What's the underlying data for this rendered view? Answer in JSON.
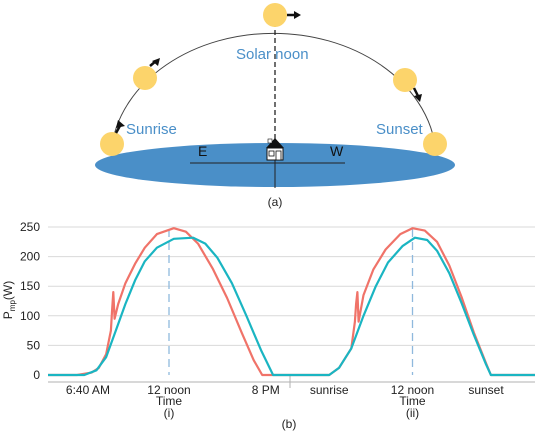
{
  "diagram": {
    "caption": "(a)",
    "labels": {
      "sunrise": "Sunrise",
      "solar_noon": "Solar noon",
      "sunset": "Sunset",
      "east": "E",
      "west": "W"
    },
    "colors": {
      "sun": "#fcd46b",
      "ground": "#4a8fc8",
      "text_blue": "#4a8fc8"
    }
  },
  "figure_b": {
    "caption": "(b)"
  },
  "chart_data": [
    {
      "type": "line",
      "panel_label": "(i)",
      "xlabel": "Time",
      "ylabel": "P_mp(W)",
      "ylim": [
        0,
        250
      ],
      "yticks": [
        0,
        50,
        100,
        150,
        200,
        250
      ],
      "grid": true,
      "x_tick_labels": [
        {
          "x": 0.165,
          "label": "6:40 AM"
        },
        {
          "x": 0.5,
          "label": "12 noon"
        },
        {
          "x": 0.9,
          "label": "8 PM"
        }
      ],
      "noon_marker_x": 0.5,
      "series": [
        {
          "color": "#f07369",
          "points": [
            [
              0,
              0
            ],
            [
              0.12,
              0
            ],
            [
              0.18,
              4
            ],
            [
              0.21,
              12
            ],
            [
              0.24,
              35
            ],
            [
              0.255,
              65
            ],
            [
              0.26,
              75
            ],
            [
              0.265,
              110
            ],
            [
              0.27,
              140
            ],
            [
              0.275,
              95
            ],
            [
              0.29,
              120
            ],
            [
              0.32,
              155
            ],
            [
              0.36,
              188
            ],
            [
              0.4,
              215
            ],
            [
              0.45,
              238
            ],
            [
              0.52,
              248
            ],
            [
              0.57,
              242
            ],
            [
              0.62,
              222
            ],
            [
              0.68,
              180
            ],
            [
              0.74,
              130
            ],
            [
              0.8,
              72
            ],
            [
              0.85,
              25
            ],
            [
              0.885,
              0
            ],
            [
              1,
              0
            ]
          ]
        },
        {
          "color": "#1ab5c2",
          "points": [
            [
              0,
              0
            ],
            [
              0.15,
              0
            ],
            [
              0.2,
              8
            ],
            [
              0.24,
              30
            ],
            [
              0.28,
              75
            ],
            [
              0.32,
              120
            ],
            [
              0.36,
              160
            ],
            [
              0.4,
              192
            ],
            [
              0.45,
              215
            ],
            [
              0.52,
              230
            ],
            [
              0.6,
              232
            ],
            [
              0.65,
              222
            ],
            [
              0.7,
              198
            ],
            [
              0.76,
              155
            ],
            [
              0.82,
              100
            ],
            [
              0.88,
              42
            ],
            [
              0.93,
              0
            ],
            [
              1,
              0
            ]
          ]
        }
      ]
    },
    {
      "type": "line",
      "panel_label": "(ii)",
      "xlabel": "Time",
      "ylim": [
        0,
        250
      ],
      "grid": true,
      "x_tick_labels": [
        {
          "x": 0.16,
          "label": "sunrise"
        },
        {
          "x": 0.5,
          "label": "12 noon"
        },
        {
          "x": 0.8,
          "label": "sunset"
        }
      ],
      "noon_marker_x": 0.5,
      "series": [
        {
          "color": "#f07369",
          "points": [
            [
              0,
              0
            ],
            [
              0.16,
              0
            ],
            [
              0.2,
              12
            ],
            [
              0.25,
              45
            ],
            [
              0.265,
              90
            ],
            [
              0.27,
              120
            ],
            [
              0.275,
              140
            ],
            [
              0.28,
              90
            ],
            [
              0.3,
              135
            ],
            [
              0.34,
              178
            ],
            [
              0.39,
              212
            ],
            [
              0.45,
              238
            ],
            [
              0.5,
              248
            ],
            [
              0.55,
              244
            ],
            [
              0.6,
              225
            ],
            [
              0.65,
              185
            ],
            [
              0.7,
              132
            ],
            [
              0.75,
              72
            ],
            [
              0.8,
              20
            ],
            [
              0.82,
              0
            ],
            [
              1,
              0
            ]
          ]
        },
        {
          "color": "#1ab5c2",
          "points": [
            [
              0,
              0
            ],
            [
              0.16,
              0
            ],
            [
              0.2,
              12
            ],
            [
              0.25,
              45
            ],
            [
              0.3,
              100
            ],
            [
              0.35,
              150
            ],
            [
              0.4,
              190
            ],
            [
              0.46,
              218
            ],
            [
              0.51,
              232
            ],
            [
              0.56,
              228
            ],
            [
              0.6,
              210
            ],
            [
              0.65,
              172
            ],
            [
              0.7,
              122
            ],
            [
              0.75,
              68
            ],
            [
              0.8,
              18
            ],
            [
              0.82,
              0
            ],
            [
              1,
              0
            ]
          ]
        }
      ]
    }
  ]
}
